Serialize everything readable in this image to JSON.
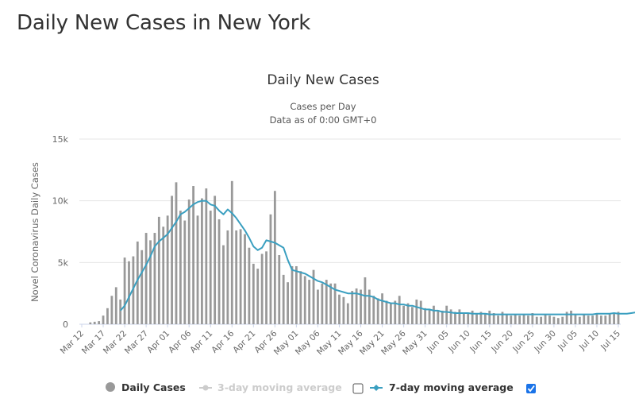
{
  "page": {
    "title": "Daily New Cases in New York"
  },
  "chart_data": {
    "type": "bar",
    "title": "Daily New Cases",
    "subtitle_lines": [
      "Cases per Day",
      "Data as of 0:00 GMT+0"
    ],
    "xlabel": "",
    "ylabel": "Novel Coronavirus Daily Cases",
    "ylim": [
      0,
      15000
    ],
    "yticks": [
      0,
      5000,
      10000,
      15000
    ],
    "ytick_labels": [
      "0",
      "5k",
      "10k",
      "15k"
    ],
    "grid": true,
    "start_date": "Mar 12",
    "xtick_labels": [
      "Mar 12",
      "Mar 17",
      "Mar 22",
      "Mar 27",
      "Apr 01",
      "Apr 06",
      "Apr 11",
      "Apr 16",
      "Apr 21",
      "Apr 26",
      "May 01",
      "May 06",
      "May 11",
      "May 16",
      "May 21",
      "May 26",
      "May 31",
      "Jun 05",
      "Jun 10",
      "Jun 15",
      "Jun 20",
      "Jun 25",
      "Jun 30",
      "Jul 05",
      "Jul 10",
      "Jul 15"
    ],
    "xtick_every_days": 5,
    "series": [
      {
        "name": "Daily Cases",
        "type": "bar",
        "color": "#999999",
        "values": [
          0,
          0,
          150,
          200,
          250,
          700,
          1300,
          2300,
          3000,
          2000,
          5400,
          5100,
          5500,
          6700,
          6000,
          7400,
          6800,
          7400,
          8700,
          7900,
          8800,
          10400,
          11500,
          9200,
          8400,
          10100,
          11200,
          8800,
          10200,
          11000,
          9200,
          10400,
          8500,
          6400,
          7600,
          11600,
          7600,
          7700,
          7300,
          6200,
          4900,
          4500,
          5700,
          5900,
          8900,
          10800,
          5600,
          4000,
          3400,
          4700,
          4700,
          4300,
          3900,
          3600,
          4400,
          2800,
          3300,
          3600,
          3300,
          3300,
          2400,
          2200,
          1700,
          2700,
          2900,
          2800,
          3800,
          2800,
          2300,
          2100,
          2500,
          1900,
          1700,
          1900,
          2300,
          1500,
          1700,
          1400,
          2000,
          1900,
          1300,
          1200,
          1500,
          1100,
          1100,
          1500,
          1200,
          1000,
          1200,
          900,
          900,
          1100,
          900,
          1000,
          800,
          1100,
          900,
          700,
          1000,
          800,
          700,
          800,
          700,
          800,
          700,
          900,
          600,
          600,
          800,
          700,
          600,
          500,
          600,
          1000,
          1100,
          800,
          600,
          800,
          700,
          700,
          900,
          700,
          700,
          800,
          900,
          1000
        ]
      },
      {
        "name": "3-day moving average",
        "type": "line",
        "color": "#cccccc",
        "visible": false
      },
      {
        "name": "7-day moving average",
        "type": "line",
        "color": "#3a9fc0",
        "visible": true,
        "start_index": 9,
        "values": [
          1100,
          1500,
          2200,
          2900,
          3600,
          4200,
          4800,
          5500,
          6300,
          6700,
          7000,
          7300,
          7800,
          8300,
          8900,
          9100,
          9400,
          9700,
          9900,
          10000,
          10000,
          9700,
          9600,
          9200,
          8900,
          9300,
          9000,
          8600,
          8100,
          7600,
          7000,
          6300,
          6000,
          6200,
          6800,
          6700,
          6600,
          6400,
          6200,
          5200,
          4400,
          4300,
          4200,
          4100,
          3900,
          3700,
          3500,
          3400,
          3200,
          3000,
          2800,
          2700,
          2600,
          2500,
          2500,
          2500,
          2400,
          2300,
          2300,
          2200,
          2000,
          1900,
          1800,
          1700,
          1700,
          1600,
          1600,
          1500,
          1500,
          1400,
          1300,
          1200,
          1200,
          1100,
          1100,
          1000,
          1000,
          950,
          900,
          900,
          900,
          900,
          850,
          850,
          850,
          850,
          800,
          800,
          800,
          800,
          800,
          800,
          800,
          800,
          800,
          800,
          800,
          800,
          800,
          800,
          800,
          800,
          800,
          800,
          800,
          800,
          800,
          800,
          800,
          800,
          800,
          850,
          850,
          850,
          850,
          900,
          850,
          850,
          850,
          900,
          950
        ]
      }
    ],
    "legend": {
      "placement": "bottom",
      "items": [
        {
          "label": "Daily Cases",
          "enabled": true
        },
        {
          "label": "3-day moving average",
          "enabled": false,
          "checkbox_checked": false
        },
        {
          "label": "7-day moving average",
          "enabled": true,
          "checkbox_checked": true
        }
      ]
    }
  }
}
